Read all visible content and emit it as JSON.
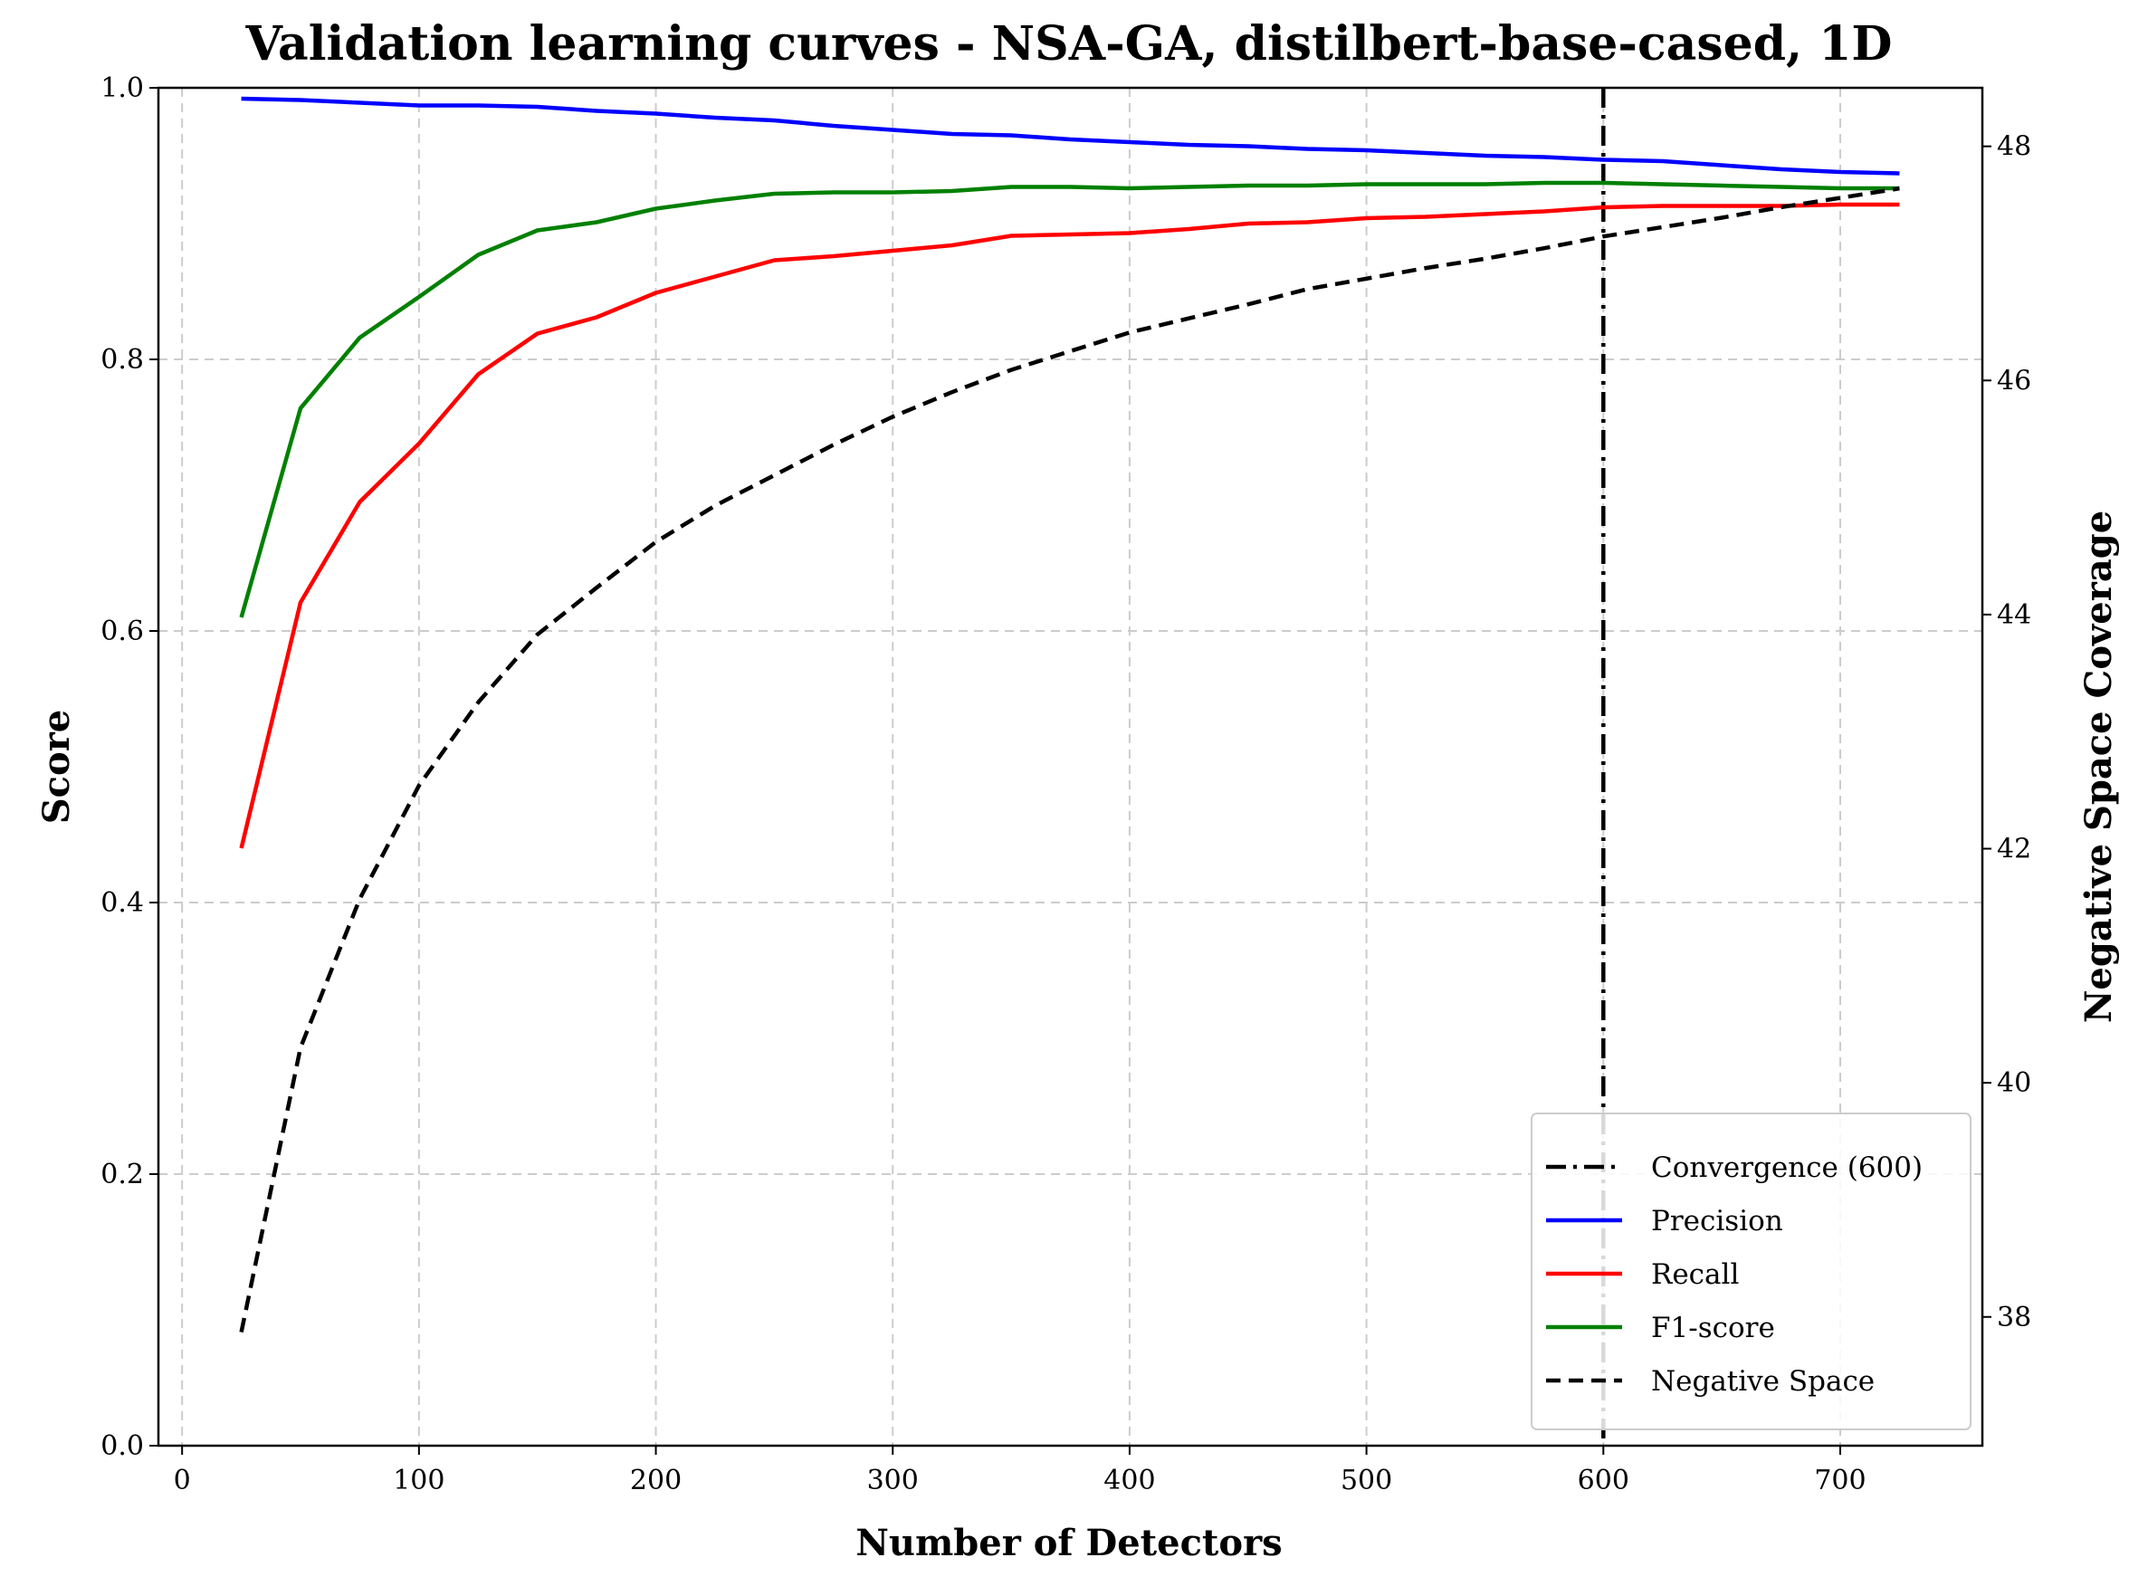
{
  "chart_data": {
    "type": "line",
    "title": "Validation learning curves - NSA-GA, distilbert-base-cased, 1D",
    "xlabel": "Number of Detectors",
    "ylabel": "Score",
    "y2label": "Negative Space Coverage",
    "xlim": [
      -10,
      760
    ],
    "ylim": [
      0,
      1
    ],
    "y2lim": [
      36.9,
      48.5
    ],
    "xticks": [
      0,
      100,
      200,
      300,
      400,
      500,
      600,
      700
    ],
    "yticks": [
      0.0,
      0.2,
      0.4,
      0.6,
      0.8,
      1.0
    ],
    "ytick_labels": [
      "0.0",
      "0.2",
      "0.4",
      "0.6",
      "0.8",
      "1.0"
    ],
    "y2ticks": [
      38,
      40,
      42,
      44,
      46,
      48
    ],
    "grid": true,
    "legend_position": "bottom-right",
    "x": [
      25,
      50,
      75,
      100,
      125,
      150,
      175,
      200,
      225,
      250,
      275,
      300,
      325,
      350,
      375,
      400,
      425,
      450,
      475,
      500,
      525,
      550,
      575,
      600,
      625,
      650,
      675,
      700,
      725
    ],
    "series": [
      {
        "name": "Precision",
        "axis": "left",
        "color": "#0000ff",
        "style": "solid",
        "values": [
          0.992,
          0.991,
          0.989,
          0.987,
          0.987,
          0.986,
          0.983,
          0.981,
          0.978,
          0.976,
          0.972,
          0.969,
          0.966,
          0.965,
          0.962,
          0.96,
          0.958,
          0.957,
          0.955,
          0.954,
          0.952,
          0.95,
          0.949,
          0.947,
          0.946,
          0.943,
          0.94,
          0.938,
          0.937
        ]
      },
      {
        "name": "Recall",
        "axis": "left",
        "color": "#ff0000",
        "style": "solid",
        "values": [
          0.44,
          0.621,
          0.695,
          0.738,
          0.789,
          0.819,
          0.831,
          0.849,
          0.861,
          0.873,
          0.876,
          0.88,
          0.884,
          0.891,
          0.892,
          0.893,
          0.896,
          0.9,
          0.901,
          0.904,
          0.905,
          0.907,
          0.909,
          0.912,
          0.913,
          0.913,
          0.913,
          0.914,
          0.914
        ]
      },
      {
        "name": "F1-score",
        "axis": "left",
        "color": "#008000",
        "style": "solid",
        "values": [
          0.61,
          0.764,
          0.816,
          0.846,
          0.877,
          0.895,
          0.901,
          0.911,
          0.917,
          0.922,
          0.923,
          0.923,
          0.924,
          0.927,
          0.927,
          0.926,
          0.927,
          0.928,
          0.928,
          0.929,
          0.929,
          0.929,
          0.93,
          0.93,
          0.929,
          0.928,
          0.927,
          0.926,
          0.926
        ]
      },
      {
        "name": "Negative Space",
        "axis": "right",
        "color": "#000000",
        "style": "dashed",
        "values": [
          37.87,
          40.3,
          41.57,
          42.54,
          43.25,
          43.83,
          44.23,
          44.62,
          44.93,
          45.19,
          45.45,
          45.69,
          45.9,
          46.09,
          46.25,
          46.41,
          46.53,
          46.65,
          46.78,
          46.87,
          46.96,
          47.04,
          47.13,
          47.23,
          47.31,
          47.39,
          47.48,
          47.56,
          47.64
        ]
      }
    ],
    "vertical_lines": [
      {
        "name": "Convergence (600)",
        "x": 600,
        "color": "#000000",
        "style": "dashdot"
      }
    ],
    "legend": [
      "Convergence (600)",
      "Precision",
      "Recall",
      "F1-score",
      "Negative Space"
    ]
  }
}
